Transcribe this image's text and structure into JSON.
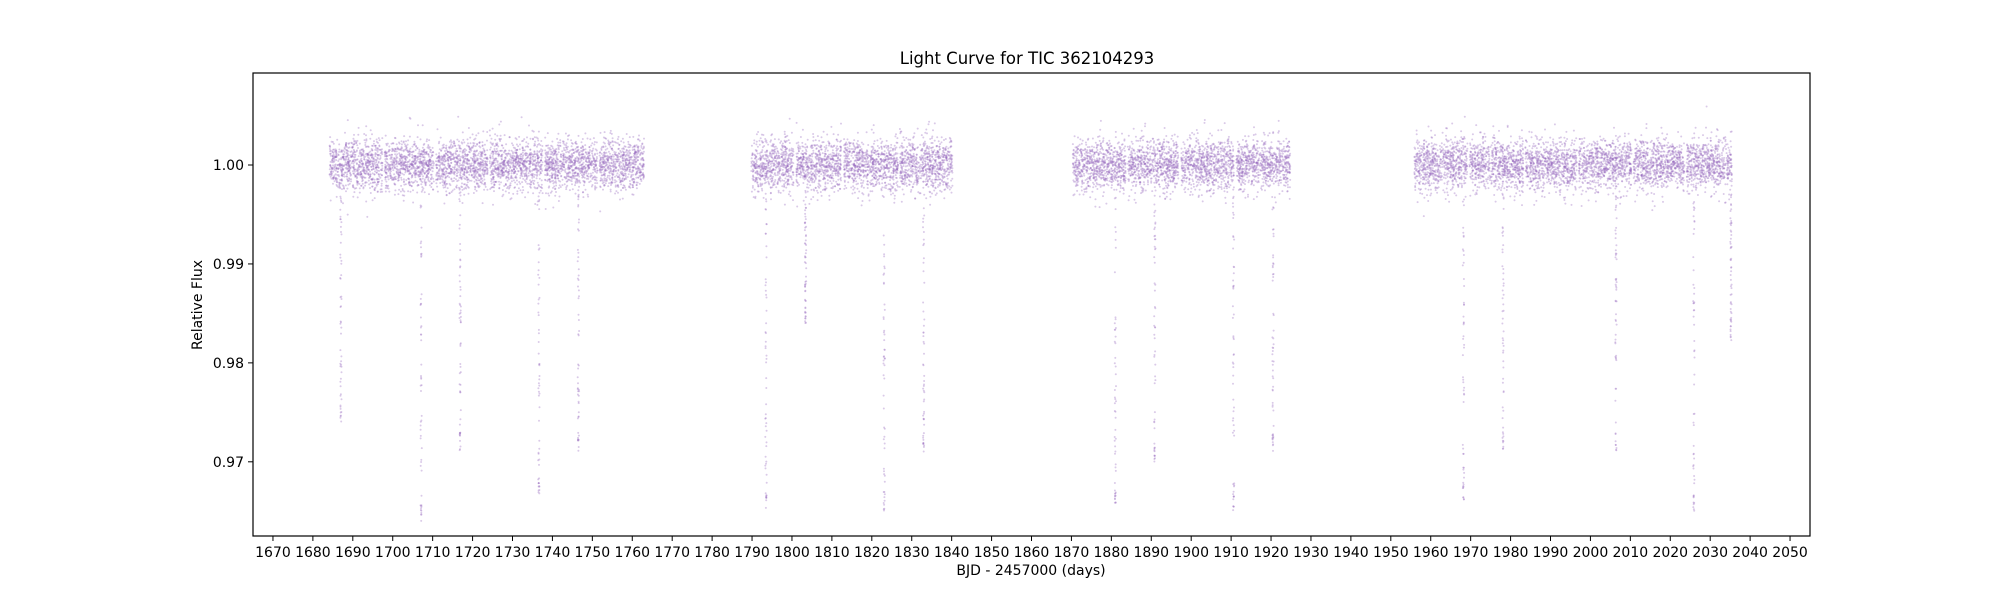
{
  "chart_data": {
    "type": "scatter",
    "title": "Light Curve for TIC 362104293",
    "xlabel": "BJD - 2457000 (days)",
    "ylabel": "Relative Flux",
    "xlim": [
      1665,
      2055
    ],
    "ylim": [
      0.9625,
      1.0093
    ],
    "xticks": [
      1670,
      1680,
      1690,
      1700,
      1710,
      1720,
      1730,
      1740,
      1750,
      1760,
      1770,
      1780,
      1790,
      1800,
      1810,
      1820,
      1830,
      1840,
      1850,
      1860,
      1870,
      1880,
      1890,
      1900,
      1910,
      1920,
      1930,
      1940,
      1950,
      1960,
      1970,
      1980,
      1990,
      2000,
      2010,
      2020,
      2030,
      2040,
      2050
    ],
    "yticks": [
      0.97,
      0.98,
      0.99,
      1.0
    ],
    "ytick_labels": [
      "0.97",
      "0.98",
      "0.99",
      "1.00"
    ],
    "grid": false,
    "color": "#9467bd",
    "baseline_flux": 1.0,
    "series": [
      {
        "name": "flux",
        "segments": [
          [
            1684.2,
            1697.4
          ],
          [
            1697.9,
            1710.3
          ],
          [
            1710.8,
            1723.8
          ],
          [
            1724.3,
            1737.6
          ],
          [
            1738.1,
            1751.3
          ],
          [
            1751.8,
            1763.0
          ],
          [
            1789.8,
            1800.4
          ],
          [
            1801.1,
            1812.3
          ],
          [
            1813.0,
            1826.6
          ],
          [
            1827.0,
            1840.2
          ],
          [
            1870.3,
            1883.6
          ],
          [
            1884.1,
            1896.8
          ],
          [
            1897.5,
            1910.7
          ],
          [
            1911.3,
            1924.8
          ],
          [
            1955.9,
            1969.2
          ],
          [
            1969.7,
            1983.2
          ],
          [
            1983.7,
            1996.6
          ],
          [
            1997.1,
            2010.3
          ],
          [
            2010.8,
            2023.6
          ],
          [
            2024.1,
            2035.5
          ]
        ],
        "transits": [
          {
            "x": 1687.0,
            "depth": 0.975
          },
          {
            "x": 1707.1,
            "depth": 0.965
          },
          {
            "x": 1716.9,
            "depth": 0.972
          },
          {
            "x": 1736.6,
            "depth": 0.967
          },
          {
            "x": 1746.5,
            "depth": 0.972
          },
          {
            "x": 1793.5,
            "depth": 0.966
          },
          {
            "x": 1803.4,
            "depth": 0.985
          },
          {
            "x": 1823.1,
            "depth": 0.966
          },
          {
            "x": 1833.0,
            "depth": 0.972
          },
          {
            "x": 1881.0,
            "depth": 0.966
          },
          {
            "x": 1890.9,
            "depth": 0.971
          },
          {
            "x": 1910.6,
            "depth": 0.966
          },
          {
            "x": 1920.5,
            "depth": 0.972
          },
          {
            "x": 1968.2,
            "depth": 0.967
          },
          {
            "x": 1978.1,
            "depth": 0.972
          },
          {
            "x": 2006.4,
            "depth": 0.972
          },
          {
            "x": 2025.9,
            "depth": 0.966
          },
          {
            "x": 2035.2,
            "depth": 0.983
          }
        ]
      }
    ]
  }
}
